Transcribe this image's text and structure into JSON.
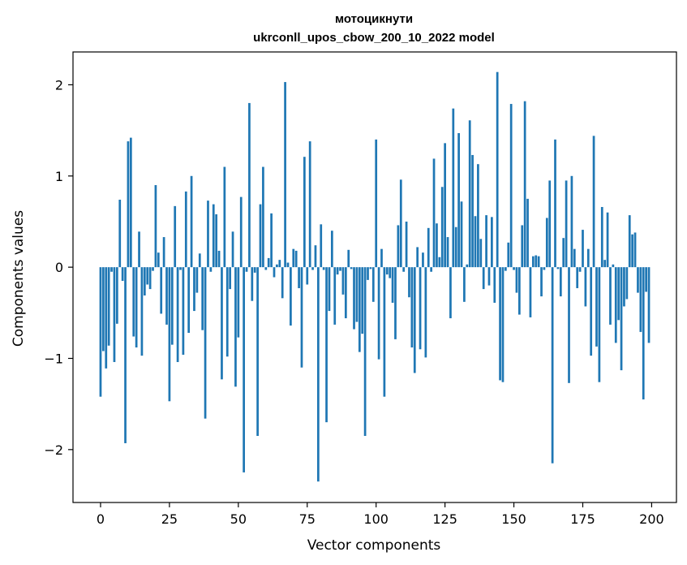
{
  "chart_data": {
    "type": "bar",
    "title": "мотоцикнути",
    "subtitle": "ukrconll_upos_cbow_200_10_2022 model",
    "xlabel": "Vector components",
    "ylabel": "Components values",
    "xlim": [
      -10,
      209
    ],
    "ylim": [
      -2.58,
      2.36
    ],
    "xticks": [
      0,
      25,
      50,
      75,
      100,
      125,
      150,
      175,
      200
    ],
    "yticks": [
      -2,
      -1,
      0,
      1,
      2
    ],
    "grid": false,
    "bar_color": "#1f77b4",
    "values": [
      -1.42,
      -0.92,
      -1.11,
      -0.86,
      -0.05,
      -1.04,
      -0.62,
      0.74,
      -0.15,
      -1.93,
      1.38,
      1.42,
      -0.76,
      -0.88,
      0.39,
      -0.97,
      -0.31,
      -0.19,
      -0.24,
      -0.04,
      0.9,
      0.16,
      -0.51,
      0.33,
      -0.63,
      -1.47,
      -0.85,
      0.67,
      -1.04,
      -0.03,
      -0.96,
      0.83,
      -0.72,
      1.0,
      -0.48,
      -0.28,
      0.15,
      -0.69,
      -1.66,
      0.73,
      -0.05,
      0.69,
      0.58,
      0.18,
      -1.23,
      1.1,
      -0.98,
      -0.24,
      0.39,
      -1.31,
      -0.77,
      0.77,
      -2.25,
      -0.05,
      1.8,
      -0.37,
      -0.06,
      -1.85,
      0.69,
      1.1,
      -0.03,
      0.1,
      0.59,
      -0.11,
      0.03,
      0.08,
      -0.34,
      2.03,
      0.05,
      -0.64,
      0.2,
      0.18,
      -0.23,
      -1.1,
      1.21,
      -0.19,
      1.38,
      -0.03,
      0.24,
      -2.35,
      0.47,
      -0.03,
      -1.7,
      -0.48,
      0.4,
      -0.63,
      -0.08,
      -0.04,
      -0.3,
      -0.56,
      0.19,
      -0.02,
      -0.68,
      -0.6,
      -0.93,
      -0.73,
      -1.85,
      -0.14,
      -0.02,
      -0.38,
      1.4,
      -1.01,
      0.2,
      -1.42,
      -0.08,
      -0.12,
      -0.39,
      -0.79,
      0.46,
      0.96,
      -0.05,
      0.5,
      -0.33,
      -0.88,
      -1.16,
      0.22,
      -0.9,
      0.16,
      -0.99,
      0.43,
      -0.05,
      1.19,
      0.48,
      0.11,
      0.88,
      1.36,
      0.33,
      -0.56,
      1.74,
      0.44,
      1.47,
      0.72,
      -0.38,
      0.03,
      1.61,
      1.23,
      0.56,
      1.13,
      0.31,
      -0.24,
      0.57,
      -0.2,
      0.55,
      -0.39,
      2.14,
      -1.24,
      -1.26,
      -0.04,
      0.27,
      1.79,
      -0.03,
      -0.28,
      -0.52,
      0.46,
      1.82,
      0.75,
      -0.55,
      0.12,
      0.13,
      0.12,
      -0.32,
      -0.03,
      0.54,
      0.95,
      -2.15,
      1.4,
      -0.02,
      -0.32,
      0.32,
      0.95,
      -1.27,
      1.0,
      0.2,
      -0.23,
      -0.05,
      0.41,
      -0.43,
      0.2,
      -0.97,
      1.44,
      -0.87,
      -1.26,
      0.66,
      0.08,
      0.6,
      -0.63,
      0.03,
      -0.83,
      -0.58,
      -1.13,
      -0.43,
      -0.35,
      0.57,
      0.36,
      0.38,
      -0.28,
      -0.71,
      -1.45,
      -0.27,
      -0.83
    ]
  }
}
